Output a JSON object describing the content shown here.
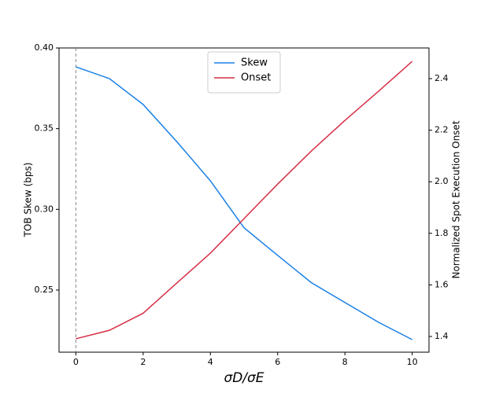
{
  "chart_data": {
    "type": "line",
    "xlabel": "σD/σE",
    "ylabel": "TOB Skew (bps)",
    "y2label": "Normalized Spot Execution Onset",
    "x": [
      0,
      1,
      2,
      3,
      4,
      5,
      6,
      7,
      8,
      9,
      10
    ],
    "series": [
      {
        "name": "Skew",
        "color": "#1a80e5",
        "values": [
          0.3883,
          0.381,
          0.365,
          0.342,
          0.3177,
          0.2886,
          0.2715,
          0.2546,
          0.2423,
          0.23,
          0.2193
        ]
      },
      {
        "name": "Onset",
        "color": "#d62f45",
        "axis": "y2",
        "values": [
          1.391,
          1.424,
          1.49,
          1.607,
          1.723,
          1.857,
          1.991,
          2.119,
          2.238,
          2.351,
          2.467
        ]
      }
    ],
    "xlim": [
      -0.5,
      10.5
    ],
    "xticks": [
      0,
      2,
      4,
      6,
      8,
      10
    ],
    "ylim": [
      0.2115,
      0.4
    ],
    "yticks": [
      0.25,
      {
        "value": 0.3,
        "label": "0.30"
      },
      0.35,
      {
        "value": 0.4,
        "label": "0.40"
      }
    ],
    "y2lim": [
      1.339,
      2.519
    ],
    "y2ticks": [
      1.4,
      1.6,
      1.8,
      {
        "value": 2,
        "label": "2.0"
      },
      2.2,
      2.4
    ],
    "vline": 0,
    "legend": "upper center",
    "grid": false
  }
}
